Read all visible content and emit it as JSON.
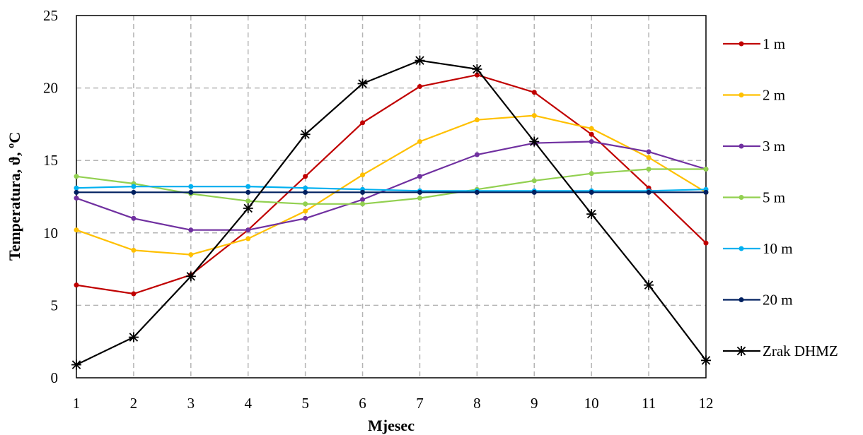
{
  "chart_data": {
    "type": "line",
    "xlabel": "Mjesec",
    "ylabel": "Temperatura, ϑ, ºC",
    "x": [
      1,
      2,
      3,
      4,
      5,
      6,
      7,
      8,
      9,
      10,
      11,
      12
    ],
    "xticks": [
      "1",
      "2",
      "3",
      "4",
      "5",
      "6",
      "7",
      "8",
      "9",
      "10",
      "11",
      "12"
    ],
    "xlim": [
      1,
      12
    ],
    "ylim": [
      0,
      25
    ],
    "yticks": [
      "0",
      "5",
      "10",
      "15",
      "20",
      "25"
    ],
    "grid": true,
    "legend_position": "right",
    "series": [
      {
        "name": "1 m",
        "color": "#c00000",
        "marker": "dot",
        "values": [
          6.4,
          5.8,
          7.1,
          10.2,
          13.9,
          17.6,
          20.1,
          20.9,
          19.7,
          16.8,
          13.1,
          9.3
        ]
      },
      {
        "name": "2 m",
        "color": "#ffc000",
        "marker": "dot",
        "values": [
          10.2,
          8.8,
          8.5,
          9.6,
          11.5,
          14.0,
          16.3,
          17.8,
          18.1,
          17.2,
          15.2,
          12.8
        ]
      },
      {
        "name": "3 m",
        "color": "#7030a0",
        "marker": "dot",
        "values": [
          12.4,
          11.0,
          10.2,
          10.2,
          11.0,
          12.3,
          13.9,
          15.4,
          16.2,
          16.3,
          15.6,
          14.4
        ]
      },
      {
        "name": "5 m",
        "color": "#92d050",
        "marker": "dot",
        "values": [
          13.9,
          13.4,
          12.7,
          12.2,
          12.0,
          12.0,
          12.4,
          13.0,
          13.6,
          14.1,
          14.4,
          14.4
        ]
      },
      {
        "name": "10 m",
        "color": "#00b0f0",
        "marker": "dot",
        "values": [
          13.1,
          13.2,
          13.2,
          13.2,
          13.1,
          13.0,
          12.9,
          12.9,
          12.9,
          12.9,
          12.9,
          13.0
        ]
      },
      {
        "name": "20 m",
        "color": "#002060",
        "marker": "dot",
        "values": [
          12.8,
          12.8,
          12.8,
          12.8,
          12.8,
          12.8,
          12.8,
          12.8,
          12.8,
          12.8,
          12.8,
          12.8
        ]
      },
      {
        "name": "Zrak DHMZ",
        "color": "#000000",
        "marker": "star",
        "values": [
          0.9,
          2.8,
          7.0,
          11.7,
          16.8,
          20.3,
          21.9,
          21.3,
          16.3,
          11.3,
          6.4,
          1.2
        ]
      }
    ]
  }
}
